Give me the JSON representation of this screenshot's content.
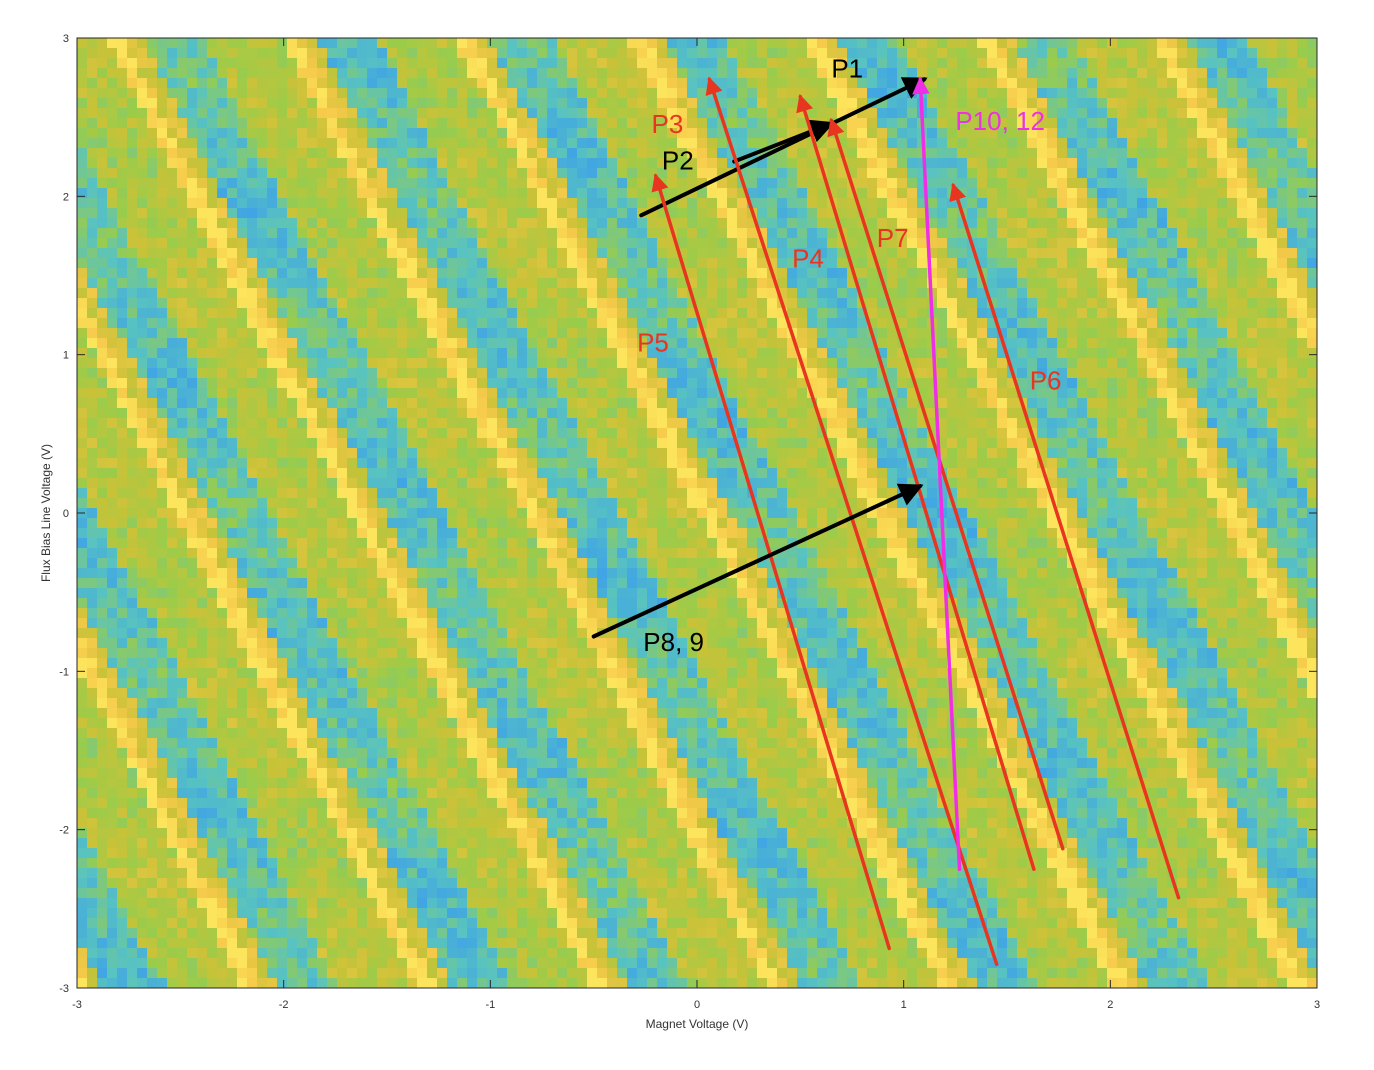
{
  "chart_data": {
    "type": "heatmap",
    "title": "",
    "xlabel": "Magnet Voltage (V)",
    "ylabel": "Flux Bias Line Voltage (V)",
    "xlim": [
      -3,
      3
    ],
    "ylim": [
      -3,
      3
    ],
    "x_ticks": [
      "-3",
      "-2",
      "-1",
      "0",
      "1",
      "2",
      "3"
    ],
    "y_ticks": [
      "-3",
      "-2",
      "-1",
      "0",
      "1",
      "2",
      "3"
    ],
    "x_tick_values": [
      -3,
      -2,
      -1,
      0,
      1,
      2,
      3
    ],
    "y_tick_values": [
      -3,
      -2,
      -1,
      0,
      1,
      2,
      3
    ],
    "grid": false,
    "colormap": [
      "#3a6fd8",
      "#3fa3e6",
      "#58c3c0",
      "#9acc4a",
      "#c9c238",
      "#f6c94a",
      "#fce55c"
    ],
    "paths": [
      {
        "label": "P1",
        "color": "#000000",
        "from": [
          -0.27,
          1.88
        ],
        "to": [
          1.1,
          2.74
        ],
        "label_pos": [
          0.65,
          2.75
        ]
      },
      {
        "label": "P2",
        "color": "#000000",
        "from": [
          0.18,
          2.22
        ],
        "to": [
          0.65,
          2.46
        ],
        "label_pos": [
          -0.17,
          2.17
        ]
      },
      {
        "label": "P3",
        "color": "#e8351f",
        "from": [
          1.45,
          -2.85
        ],
        "to": [
          0.06,
          2.74
        ],
        "label_pos": [
          -0.22,
          2.4
        ]
      },
      {
        "label": "P4",
        "color": "#e8351f",
        "from": [
          1.63,
          -2.25
        ],
        "to": [
          0.5,
          2.63
        ],
        "label_pos": [
          0.46,
          1.55
        ]
      },
      {
        "label": "P5",
        "color": "#e8351f",
        "from": [
          0.93,
          -2.75
        ],
        "to": [
          -0.2,
          2.13
        ],
        "label_pos": [
          -0.29,
          1.02
        ]
      },
      {
        "label": "P6",
        "color": "#e8351f",
        "from": [
          2.33,
          -2.43
        ],
        "to": [
          1.24,
          2.07
        ],
        "label_pos": [
          1.61,
          0.78
        ]
      },
      {
        "label": "P7",
        "color": "#e8351f",
        "from": [
          1.77,
          -2.12
        ],
        "to": [
          0.65,
          2.48
        ],
        "label_pos": [
          0.87,
          1.68
        ]
      },
      {
        "label": "P8, 9",
        "color": "#000000",
        "from": [
          -0.5,
          -0.78
        ],
        "to": [
          1.08,
          0.17
        ],
        "label_pos": [
          -0.26,
          -0.87
        ]
      },
      {
        "label": "P10, 12",
        "color": "#ee2fe6",
        "from": [
          1.27,
          -2.25
        ],
        "to": [
          1.08,
          2.74
        ],
        "label_pos": [
          1.25,
          2.42
        ]
      }
    ]
  }
}
